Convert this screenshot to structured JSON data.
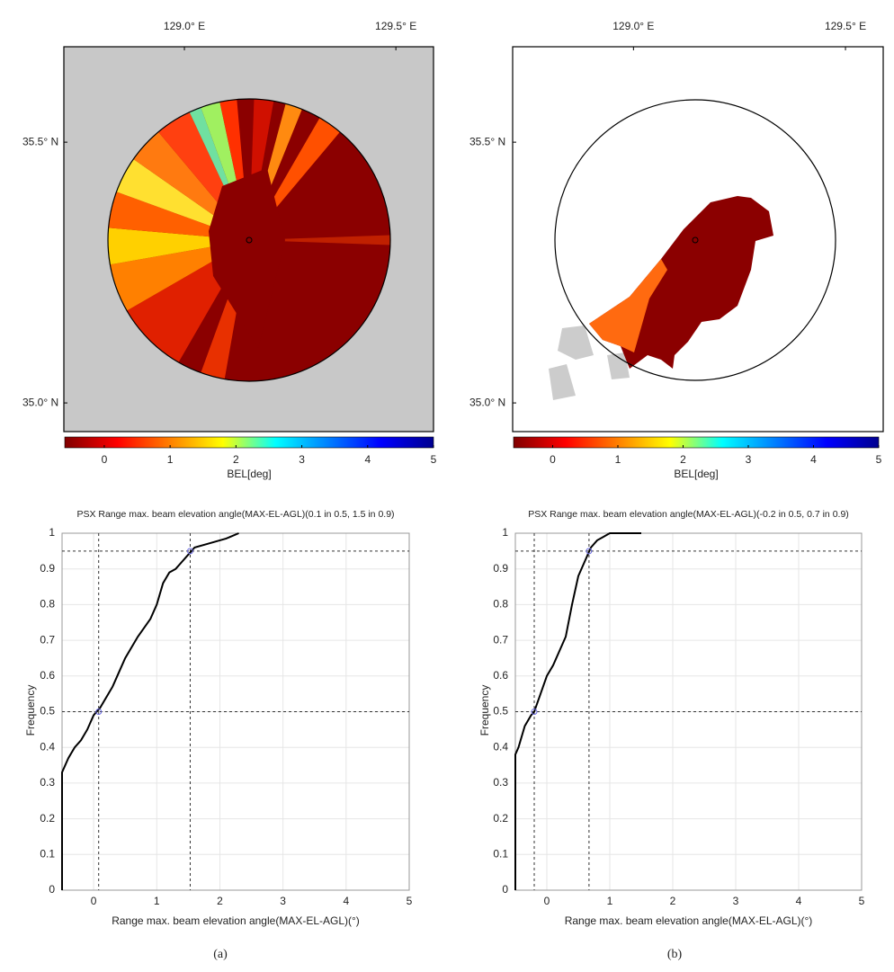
{
  "chart_data": [
    {
      "type": "map",
      "background": "#c8c8c8",
      "xlim": [
        128.715,
        129.589
      ],
      "xticks": [
        {
          "value": 129.0,
          "label": "129.0° E"
        },
        {
          "value": 129.5,
          "label": "129.5° E"
        }
      ],
      "ylim": [
        34.945,
        35.683
      ],
      "yticks": [
        {
          "value": 35.5,
          "label": "35.5° N"
        },
        {
          "value": 35.0,
          "label": "35.0° N"
        }
      ],
      "colorbar": {
        "label": "BEL[deg]",
        "lim": [
          -0.6,
          5
        ],
        "ticks": [
          0,
          1,
          2,
          3,
          4,
          5
        ]
      },
      "colormap": [
        "#800000",
        "#ff0000",
        "#ff8000",
        "#ffff00",
        "#00ffff",
        "#0080ff",
        "#0000ff",
        "#00008f"
      ]
    },
    {
      "type": "map",
      "background": "#ffffff",
      "xlim": [
        128.715,
        129.589
      ],
      "xticks": [
        {
          "value": 129.0,
          "label": "129.0° E"
        },
        {
          "value": 129.5,
          "label": "129.5° E"
        }
      ],
      "ylim": [
        34.945,
        35.683
      ],
      "yticks": [
        {
          "value": 35.5,
          "label": "35.5° N"
        },
        {
          "value": 35.0,
          "label": "35.0° N"
        }
      ],
      "colorbar": {
        "label": "BEL[deg]",
        "lim": [
          -0.6,
          5
        ],
        "ticks": [
          0,
          1,
          2,
          3,
          4,
          5
        ]
      },
      "colormap": [
        "#800000",
        "#ff0000",
        "#ff8000",
        "#ffff00",
        "#00ffff",
        "#0080ff",
        "#0000ff",
        "#00008f"
      ]
    },
    {
      "type": "line",
      "title": "PSX Range max. beam elevation angle(MAX-EL-AGL)(0.1 in 0.5, 1.5 in 0.9)",
      "x_label": "Range max. beam elevation angle(MAX-EL-AGL)(°)",
      "y_label": "Frequency",
      "xlim": [
        -0.5,
        5
      ],
      "xticks": [
        0,
        1,
        2,
        3,
        4,
        5
      ],
      "ylim": [
        0,
        1
      ],
      "yticks": [
        0,
        0.1,
        0.2,
        0.3,
        0.4,
        0.5,
        0.6,
        0.7,
        0.8,
        0.9,
        1
      ],
      "grid": true,
      "x": [
        -0.5,
        -0.5,
        -0.4,
        -0.3,
        -0.2,
        -0.1,
        0,
        0.1,
        0.2,
        0.3,
        0.4,
        0.5,
        0.7,
        0.9,
        1.0,
        1.1,
        1.2,
        1.3,
        1.4,
        1.5,
        1.6,
        1.8,
        2.0,
        2.1,
        2.3
      ],
      "series": [
        {
          "color": "#000000",
          "values": [
            0,
            0.33,
            0.37,
            0.4,
            0.42,
            0.45,
            0.49,
            0.51,
            0.54,
            0.57,
            0.61,
            0.65,
            0.71,
            0.76,
            0.8,
            0.86,
            0.89,
            0.9,
            0.92,
            0.94,
            0.96,
            0.97,
            0.98,
            0.985,
            1.0
          ]
        }
      ],
      "ref_lines": {
        "x": [
          0.08,
          1.53
        ],
        "y": [
          0.5,
          0.95
        ]
      }
    },
    {
      "type": "line",
      "title": "PSX Range max. beam elevation angle(MAX-EL-AGL)(-0.2 in 0.5, 0.7 in 0.9)",
      "x_label": "Range max. beam elevation angle(MAX-EL-AGL)(°)",
      "y_label": "Frequency",
      "xlim": [
        -0.5,
        5
      ],
      "xticks": [
        0,
        1,
        2,
        3,
        4,
        5
      ],
      "ylim": [
        0,
        1
      ],
      "yticks": [
        0,
        0.1,
        0.2,
        0.3,
        0.4,
        0.5,
        0.6,
        0.7,
        0.8,
        0.9,
        1
      ],
      "grid": true,
      "x": [
        -0.5,
        -0.5,
        -0.45,
        -0.35,
        -0.25,
        -0.2,
        -0.1,
        0,
        0.1,
        0.2,
        0.3,
        0.4,
        0.5,
        0.6,
        0.7,
        0.8,
        0.9,
        1.0,
        1.5
      ],
      "series": [
        {
          "color": "#000000",
          "values": [
            0,
            0.38,
            0.4,
            0.46,
            0.49,
            0.5,
            0.55,
            0.6,
            0.63,
            0.67,
            0.71,
            0.8,
            0.88,
            0.92,
            0.96,
            0.98,
            0.99,
            1.0,
            1.0
          ]
        }
      ],
      "ref_lines": {
        "x": [
          -0.2,
          0.67
        ],
        "y": [
          0.5,
          0.95
        ]
      }
    }
  ],
  "captions": [
    "(a)",
    "(b)"
  ]
}
